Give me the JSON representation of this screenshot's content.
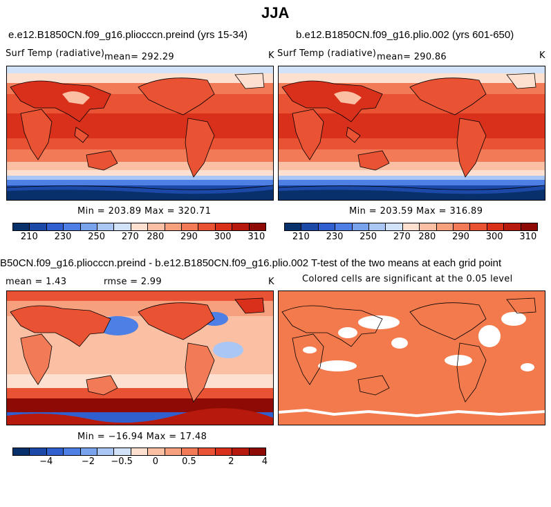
{
  "figure": {
    "title": "JJA"
  },
  "panels": [
    {
      "title": "e.e12.B1850CN.f09_g16.pliocccn.preind (yrs 15-34)",
      "variable": "Surf Temp (radiative)",
      "mean": "mean= 292.29",
      "units": "K",
      "minmax": "Min = 203.89  Max = 320.71",
      "colorbar": {
        "colors": [
          "#08306b",
          "#1c49a8",
          "#3060cf",
          "#4d7fe4",
          "#7aa3ee",
          "#a9c6f4",
          "#d2e3f9",
          "#fde0cf",
          "#fbc0a3",
          "#f7a07d",
          "#f27a56",
          "#e95233",
          "#d8301b",
          "#b8190d",
          "#8e0b05"
        ],
        "labels": [
          "210",
          "230",
          "250",
          "270",
          "280",
          "290",
          "300",
          "310"
        ]
      }
    },
    {
      "title": "b.e12.B1850CN.f09_g16.plio.002 (yrs 601-650)",
      "variable": "Surf Temp (radiative)",
      "mean": "mean= 290.86",
      "units": "K",
      "minmax": "Min = 203.59  Max = 316.89",
      "colorbar": {
        "colors": [
          "#08306b",
          "#1c49a8",
          "#3060cf",
          "#4d7fe4",
          "#7aa3ee",
          "#a9c6f4",
          "#d2e3f9",
          "#fde0cf",
          "#fbc0a3",
          "#f7a07d",
          "#f27a56",
          "#e95233",
          "#d8301b",
          "#b8190d",
          "#8e0b05"
        ],
        "labels": [
          "210",
          "230",
          "250",
          "270",
          "280",
          "290",
          "300",
          "310"
        ]
      }
    },
    {
      "title": "B50CN.f09_g16.pliocccn.preind - b.e12.B1850CN.f09_g16.plio.002",
      "mean": "mean =    1.43",
      "rmse": "rmse =    2.99",
      "units": "K",
      "minmax": "Min = −16.94  Max =  17.48",
      "colorbar": {
        "colors": [
          "#08306b",
          "#1c49a8",
          "#3060cf",
          "#4d7fe4",
          "#7aa3ee",
          "#a9c6f4",
          "#d2e3f9",
          "#fde0cf",
          "#fbc0a3",
          "#f7a07d",
          "#f27a56",
          "#e95233",
          "#d8301b",
          "#b8190d",
          "#8e0b05"
        ],
        "labels": [
          "−4",
          "−2",
          "−0.5",
          "0",
          "0.5",
          "2",
          "4"
        ]
      }
    },
    {
      "title": "T-test of the two means at each grid point",
      "subtitle": "Colored cells are significant at the 0.05 level"
    }
  ]
}
